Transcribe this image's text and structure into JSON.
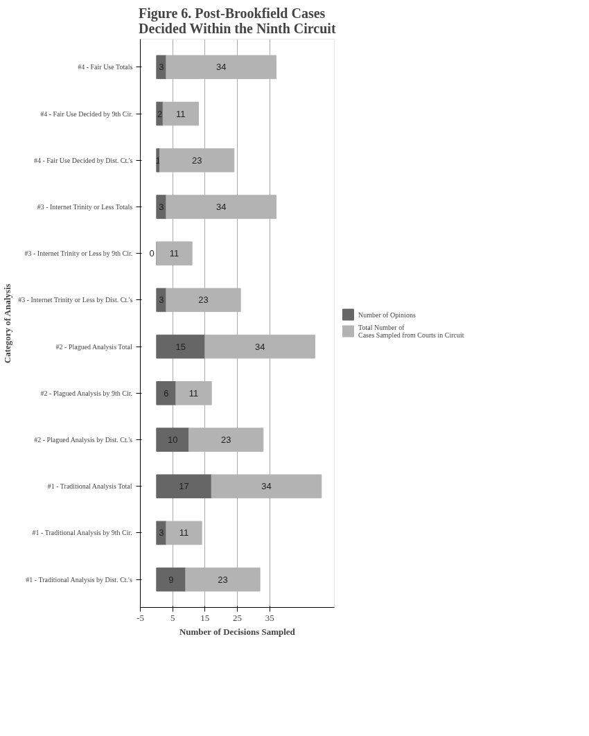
{
  "chart_data": {
    "type": "bar",
    "orientation": "horizontal",
    "stacked": true,
    "title": "Figure 6. Post-Brookfield Cases Decided Within the Ninth Circuit",
    "xlabel": "Number of Decisions Sampled",
    "ylabel": "Category of Analysis",
    "categories": [
      "#4 - Fair Use Totals",
      "#4 - Fair Use Decided by 9th Cir.",
      "#4 - Fair Use Decided by Dist. Ct.'s",
      "#3 - Internet Trinity or Less Totals",
      "#3 - Internet Trinity or Less by 9th Cir.",
      "#3 - Internet Trinity or Less by Dist. Ct.'s",
      "#2 - Plagued Analysis Total",
      "#2 - Plagued Analysis by 9th Cir.",
      "#2 - Plagued Analysis by Dist. Ct.'s",
      "#1 - Traditional Analysis Total",
      "#1 - Traditional Analysis by 9th Cir.",
      "#1 - Traditional Analysis by Dist. Ct.'s"
    ],
    "series": [
      {
        "name": "Number of Opinions",
        "color": "#666666",
        "values": [
          3,
          2,
          1,
          3,
          0,
          3,
          15,
          6,
          10,
          17,
          3,
          9
        ]
      },
      {
        "name": "Total Number of Cases Sampled from Courts in Circuit",
        "color": "#b3b3b3",
        "values": [
          34,
          11,
          23,
          34,
          11,
          23,
          34,
          11,
          23,
          34,
          11,
          23
        ]
      }
    ],
    "xlim": [
      -5,
      55
    ],
    "xticks": [
      -5,
      5,
      15,
      25,
      35
    ],
    "grid": "x",
    "legend": "right",
    "data_labels": true
  }
}
